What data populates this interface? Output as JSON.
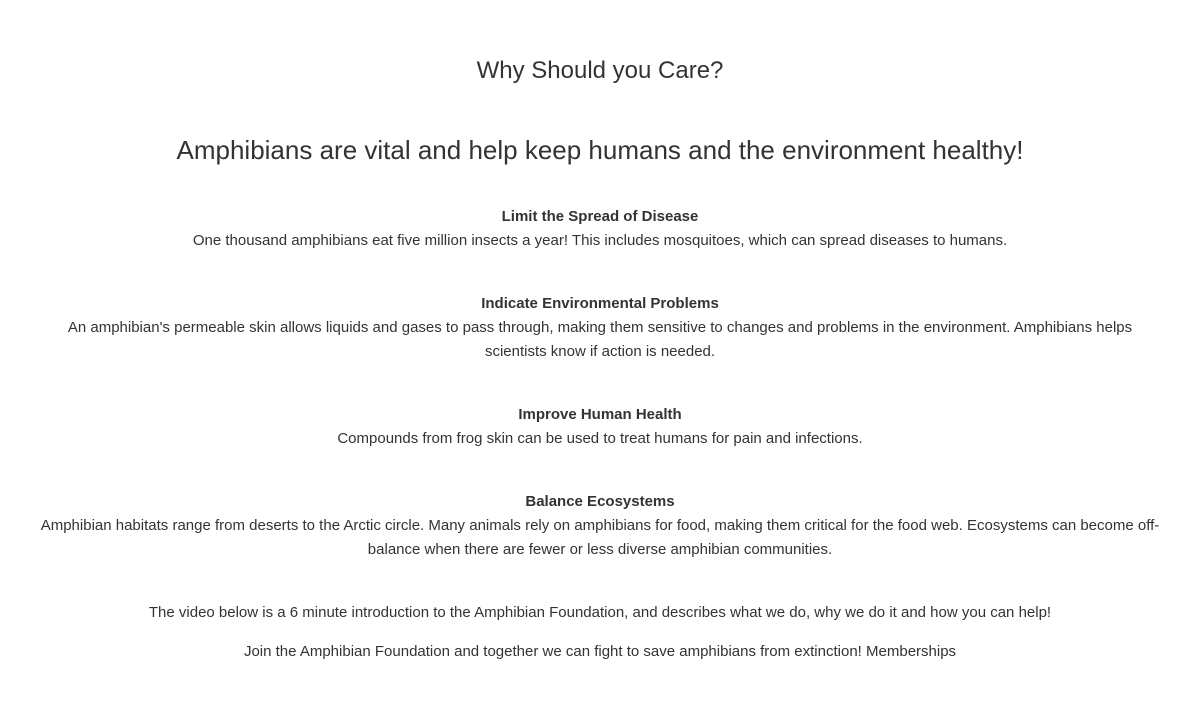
{
  "section_title": "Why Should you Care?",
  "headline": "Amphibians are vital and help keep humans and the environment healthy!",
  "reasons": [
    {
      "title": "Limit the Spread of Disease",
      "text": "One thousand amphibians eat five million insects a year! This includes mosquitoes, which can spread diseases to humans."
    },
    {
      "title": "Indicate Environmental Problems",
      "text": "An amphibian's permeable skin allows liquids and gases to pass through, making them sensitive to changes and problems in the environment. Amphibians helps scientists know if action is needed."
    },
    {
      "title": "Improve Human Health",
      "text": "Compounds from frog skin can be used to treat humans for pain and infections."
    },
    {
      "title": "Balance Ecosystems",
      "text": "Amphibian habitats range from deserts to the Arctic circle. Many animals rely on amphibians for food, making them critical for the food web. Ecosystems can become off-balance when there are fewer or less diverse amphibian communities."
    }
  ],
  "video_intro": "The video below is a 6 minute introduction to the Amphibian Foundation, and describes what we do, why we do it and how you can help!",
  "join": {
    "text": "Join the Amphibian Foundation and together we can fight to save amphibians from extinction!",
    "link_label": "Memberships"
  }
}
